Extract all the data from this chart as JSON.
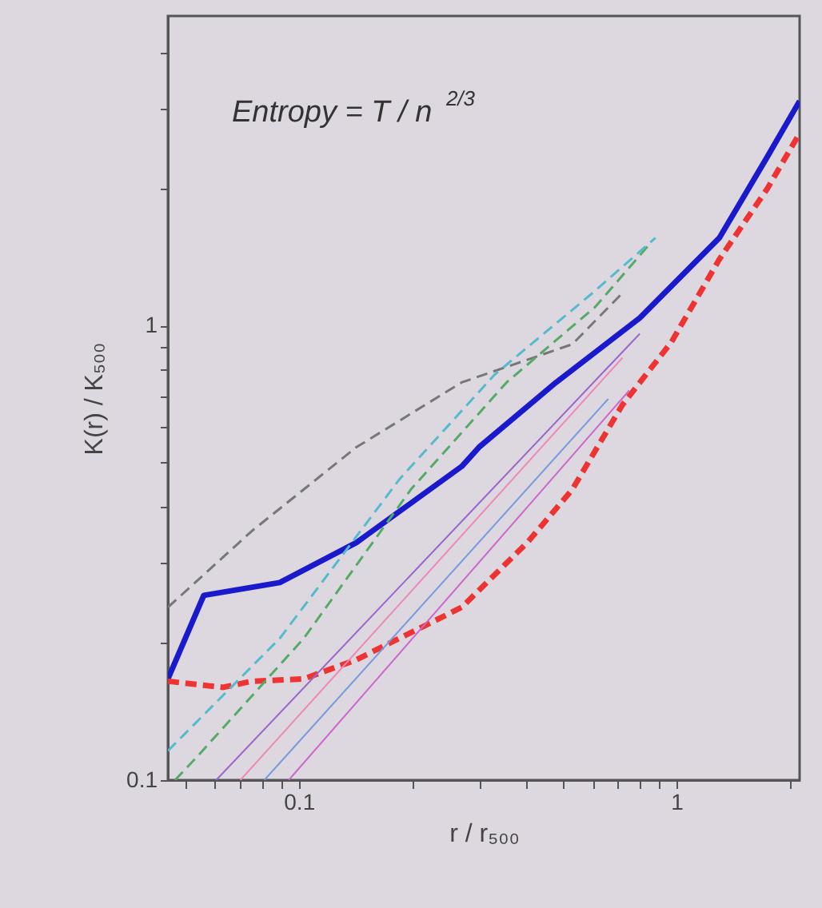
{
  "chart_data": {
    "type": "line",
    "xlabel": "r / r₅₀₀",
    "ylabel": "K(r) / K₅₀₀",
    "annotations": [
      "Entropy = T / n$^{2/3}$"
    ],
    "log": "xy",
    "grid": false,
    "marker": "none",
    "xlim": [
      0.045,
      2.12
    ],
    "ylim": [
      0.1,
      4.8
    ],
    "xticks": [
      {
        "value": 0.05,
        "label": null
      },
      {
        "value": 0.06,
        "label": null
      },
      {
        "value": 0.07,
        "label": null
      },
      {
        "value": 0.08,
        "label": null
      },
      {
        "value": 0.09,
        "label": null
      },
      0.1,
      {
        "value": 0.2,
        "label": null
      },
      {
        "value": 0.3,
        "label": null
      },
      {
        "value": 0.4,
        "label": null
      },
      {
        "value": 0.5,
        "label": null
      },
      {
        "value": 0.6,
        "label": null
      },
      {
        "value": 0.7,
        "label": null
      },
      {
        "value": 0.8,
        "label": null
      },
      {
        "value": 0.9,
        "label": null
      },
      1,
      {
        "value": 2,
        "label": null
      }
    ],
    "yticks": [
      0.1,
      {
        "value": 0.2,
        "label": null
      },
      {
        "value": 0.3,
        "label": null
      },
      {
        "value": 0.4,
        "label": null
      },
      {
        "value": 0.5,
        "label": null
      },
      {
        "value": 0.6,
        "label": null
      },
      {
        "value": 0.7,
        "label": null
      },
      {
        "value": 0.8,
        "label": null
      },
      {
        "value": 0.9,
        "label": null
      },
      1,
      {
        "value": 2,
        "label": null
      },
      {
        "value": 3,
        "label": null
      },
      {
        "value": 4,
        "label": null
      }
    ],
    "series": [
      {
        "color": "#1a1acc",
        "line_style": "solid",
        "x": [
          0.045,
          0.056,
          0.089,
          0.142,
          0.152,
          0.27,
          0.3,
          0.48,
          0.8,
          1.3,
          1.74,
          2.12
        ],
        "values": [
          0.167,
          0.255,
          0.272,
          0.333,
          0.347,
          0.49,
          0.54,
          0.75,
          1.04,
          1.56,
          2.35,
          3.12
        ]
      },
      {
        "color": "#ee3333",
        "line_style": "dashed",
        "x": [
          0.045,
          0.063,
          0.075,
          0.103,
          0.142,
          0.27,
          0.404,
          0.53,
          0.72,
          0.97,
          1.3,
          1.74,
          2.12
        ],
        "values": [
          0.165,
          0.16,
          0.165,
          0.167,
          0.184,
          0.24,
          0.334,
          0.436,
          0.67,
          0.92,
          1.4,
          2.0,
          2.65
        ]
      },
      {
        "color": "#777777",
        "line_style": "dashed",
        "x": [
          0.045,
          0.075,
          0.142,
          0.27,
          0.53,
          0.72
        ],
        "values": [
          0.24,
          0.353,
          0.54,
          0.75,
          0.91,
          1.18
        ]
      },
      {
        "color": "#55aa66",
        "line_style": "dashed",
        "x": [
          0.047,
          0.054,
          0.103,
          0.198,
          0.355,
          0.61,
          0.86
        ],
        "values": [
          0.1,
          0.113,
          0.205,
          0.436,
          0.75,
          1.1,
          1.53
        ]
      },
      {
        "color": "#55bbcc",
        "line_style": "dashed",
        "x": [
          0.045,
          0.089,
          0.185,
          0.33,
          0.6,
          0.88
        ],
        "values": [
          0.116,
          0.205,
          0.46,
          0.78,
          1.18,
          1.56
        ]
      },
      {
        "color": "#9966cc",
        "line_style": "solid",
        "x": [
          0.0604,
          0.8
        ],
        "values": [
          0.1,
          0.96
        ]
      },
      {
        "color": "#ee88bb",
        "line_style": "solid",
        "x": [
          0.07,
          0.72
        ],
        "values": [
          0.1,
          0.85
        ]
      },
      {
        "color": "#7799dd",
        "line_style": "solid",
        "x": [
          0.081,
          0.66
        ],
        "values": [
          0.1,
          0.69
        ]
      },
      {
        "color": "#cc66cc",
        "line_style": "solid",
        "x": [
          0.094,
          0.75
        ],
        "values": [
          0.1,
          0.72
        ]
      }
    ]
  }
}
